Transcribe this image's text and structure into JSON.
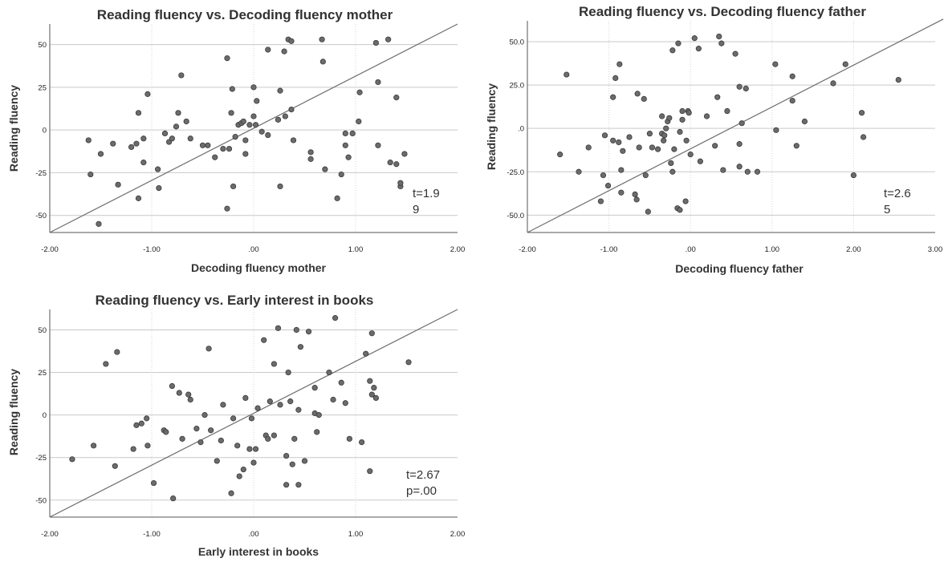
{
  "chart_data": [
    {
      "type": "scatter",
      "title": "Reading fluency vs. Decoding fluency mother",
      "xlabel": "Decoding fluency mother",
      "ylabel": "Reading fluency",
      "xlim": [
        -2,
        2
      ],
      "ylim": [
        -60,
        62
      ],
      "xticks": [
        -2,
        -1,
        0,
        1,
        2
      ],
      "xtick_labels": [
        "-2.00",
        "-1.00",
        ".00",
        "1.00",
        "2.00"
      ],
      "yticks": [
        50,
        25,
        0,
        -25,
        -50
      ],
      "ytick_labels": [
        "50",
        "25",
        "0",
        "-25",
        "-50"
      ],
      "grid": true,
      "annotation": [
        "t=1.9",
        "9"
      ],
      "fit_line": [
        [
          -2,
          -60
        ],
        [
          2,
          62
        ]
      ],
      "points": [
        [
          -1.62,
          -6
        ],
        [
          -1.6,
          -26
        ],
        [
          -1.52,
          -55
        ],
        [
          -1.5,
          -14
        ],
        [
          -1.38,
          -8
        ],
        [
          -1.33,
          -32
        ],
        [
          -1.2,
          -10
        ],
        [
          -1.15,
          -8
        ],
        [
          -1.13,
          10
        ],
        [
          -1.13,
          -40
        ],
        [
          -1.08,
          -19
        ],
        [
          -1.08,
          -5
        ],
        [
          -1.04,
          21
        ],
        [
          -0.94,
          -23
        ],
        [
          -0.93,
          -34
        ],
        [
          -0.87,
          -2
        ],
        [
          -0.83,
          -7
        ],
        [
          -0.8,
          -5
        ],
        [
          -0.76,
          2
        ],
        [
          -0.74,
          10
        ],
        [
          -0.71,
          32
        ],
        [
          -0.66,
          5
        ],
        [
          -0.62,
          -5
        ],
        [
          -0.5,
          -9
        ],
        [
          -0.45,
          -9
        ],
        [
          -0.38,
          -16
        ],
        [
          -0.3,
          -11
        ],
        [
          -0.26,
          42
        ],
        [
          -0.26,
          -46
        ],
        [
          -0.24,
          -11
        ],
        [
          -0.22,
          10
        ],
        [
          -0.21,
          24
        ],
        [
          -0.2,
          -33
        ],
        [
          -0.18,
          -4
        ],
        [
          -0.15,
          3
        ],
        [
          -0.12,
          4
        ],
        [
          -0.1,
          5
        ],
        [
          -0.08,
          -14
        ],
        [
          -0.08,
          -6
        ],
        [
          -0.04,
          3
        ],
        [
          0.0,
          25
        ],
        [
          0.0,
          8
        ],
        [
          0.03,
          17
        ],
        [
          0.02,
          3
        ],
        [
          0.08,
          -1
        ],
        [
          0.14,
          47
        ],
        [
          0.14,
          -3
        ],
        [
          0.24,
          6
        ],
        [
          0.26,
          23
        ],
        [
          0.26,
          -33
        ],
        [
          0.3,
          46
        ],
        [
          0.31,
          8
        ],
        [
          0.34,
          53
        ],
        [
          0.37,
          12
        ],
        [
          0.37,
          52
        ],
        [
          0.39,
          -6
        ],
        [
          0.56,
          -13
        ],
        [
          0.56,
          -17
        ],
        [
          0.67,
          53
        ],
        [
          0.68,
          40
        ],
        [
          0.7,
          -23
        ],
        [
          0.82,
          -40
        ],
        [
          0.86,
          -26
        ],
        [
          0.9,
          -2
        ],
        [
          0.9,
          -9
        ],
        [
          0.93,
          -16
        ],
        [
          0.97,
          -2
        ],
        [
          1.03,
          5
        ],
        [
          1.04,
          22
        ],
        [
          1.2,
          51
        ],
        [
          1.22,
          28
        ],
        [
          1.22,
          -9
        ],
        [
          1.32,
          53
        ],
        [
          1.34,
          -19
        ],
        [
          1.4,
          -20
        ],
        [
          1.4,
          19
        ],
        [
          1.44,
          -33
        ],
        [
          1.44,
          -31
        ],
        [
          1.48,
          -14
        ]
      ]
    },
    {
      "type": "scatter",
      "title": "Reading fluency vs. Decoding fluency father",
      "xlabel": "Decoding fluency father",
      "ylabel": "Reading fluency",
      "xlim": [
        -2,
        3
      ],
      "ylim": [
        -60,
        62
      ],
      "xticks": [
        -2,
        -1,
        0,
        1,
        2,
        3
      ],
      "xtick_labels": [
        "-2.00",
        "-1.00",
        ".00",
        "1.00",
        "2.00",
        "3.00"
      ],
      "yticks": [
        50,
        25,
        0,
        -25,
        -50
      ],
      "ytick_labels": [
        "50.0",
        "25.0",
        ".0",
        "-25.0",
        "-50.0"
      ],
      "grid": true,
      "annotation": [
        "t=2.6",
        "5"
      ],
      "fit_line": [
        [
          -2,
          -60
        ],
        [
          3.1,
          63
        ]
      ],
      "points": [
        [
          -1.6,
          -15
        ],
        [
          -1.52,
          31
        ],
        [
          -1.37,
          -25
        ],
        [
          -1.25,
          -11
        ],
        [
          -1.1,
          -42
        ],
        [
          -1.07,
          -27
        ],
        [
          -1.05,
          -4
        ],
        [
          -1.01,
          -33
        ],
        [
          -0.95,
          -7
        ],
        [
          -0.95,
          18
        ],
        [
          -0.92,
          29
        ],
        [
          -0.88,
          -8
        ],
        [
          -0.87,
          37
        ],
        [
          -0.85,
          -24
        ],
        [
          -0.85,
          -37
        ],
        [
          -0.83,
          -13
        ],
        [
          -0.75,
          -5
        ],
        [
          -0.68,
          -38
        ],
        [
          -0.66,
          -41
        ],
        [
          -0.65,
          20
        ],
        [
          -0.63,
          -11
        ],
        [
          -0.57,
          17
        ],
        [
          -0.55,
          -27
        ],
        [
          -0.52,
          -48
        ],
        [
          -0.5,
          -3
        ],
        [
          -0.47,
          -11
        ],
        [
          -0.4,
          -12
        ],
        [
          -0.35,
          7
        ],
        [
          -0.35,
          -3
        ],
        [
          -0.33,
          -7
        ],
        [
          -0.32,
          -4
        ],
        [
          -0.3,
          0
        ],
        [
          -0.28,
          4
        ],
        [
          -0.26,
          6
        ],
        [
          -0.24,
          -20
        ],
        [
          -0.22,
          -25
        ],
        [
          -0.22,
          45
        ],
        [
          -0.2,
          -12
        ],
        [
          -0.16,
          -46
        ],
        [
          -0.13,
          -47
        ],
        [
          -0.15,
          49
        ],
        [
          -0.13,
          -2
        ],
        [
          -0.1,
          5
        ],
        [
          -0.1,
          10
        ],
        [
          -0.06,
          -42
        ],
        [
          -0.05,
          -7
        ],
        [
          -0.03,
          10
        ],
        [
          -0.02,
          9
        ],
        [
          0.0,
          -15
        ],
        [
          0.05,
          52
        ],
        [
          0.1,
          46
        ],
        [
          0.12,
          -19
        ],
        [
          0.2,
          7
        ],
        [
          0.3,
          -10
        ],
        [
          0.33,
          18
        ],
        [
          0.35,
          53
        ],
        [
          0.38,
          49
        ],
        [
          0.4,
          -24
        ],
        [
          0.45,
          10
        ],
        [
          0.55,
          43
        ],
        [
          0.6,
          -9
        ],
        [
          0.6,
          -22
        ],
        [
          0.6,
          24
        ],
        [
          0.63,
          3
        ],
        [
          0.68,
          23
        ],
        [
          0.7,
          -25
        ],
        [
          0.82,
          -25
        ],
        [
          1.04,
          37
        ],
        [
          1.05,
          -1
        ],
        [
          1.25,
          30
        ],
        [
          1.25,
          16
        ],
        [
          1.3,
          -10
        ],
        [
          1.4,
          4
        ],
        [
          1.75,
          26
        ],
        [
          1.9,
          37
        ],
        [
          2.1,
          9
        ],
        [
          2.12,
          -5
        ],
        [
          2.0,
          -27
        ],
        [
          2.55,
          28
        ]
      ]
    },
    {
      "type": "scatter",
      "title": "Reading fluency vs. Early interest in books",
      "xlabel": "Early interest in books",
      "ylabel": "Reading fluency",
      "xlim": [
        -2,
        2
      ],
      "ylim": [
        -60,
        62
      ],
      "xticks": [
        -2,
        -1,
        0,
        1,
        2
      ],
      "xtick_labels": [
        "-2.00",
        "-1.00",
        ".00",
        "1.00",
        "2.00"
      ],
      "yticks": [
        50,
        25,
        0,
        -25,
        -50
      ],
      "ytick_labels": [
        "50",
        "25",
        "0",
        "-25",
        "-50"
      ],
      "grid": true,
      "annotation": [
        "t=2.67",
        "p=.00"
      ],
      "fit_line": [
        [
          -2,
          -60
        ],
        [
          2,
          62
        ]
      ],
      "points": [
        [
          -1.78,
          -26
        ],
        [
          -1.57,
          -18
        ],
        [
          -1.45,
          30
        ],
        [
          -1.36,
          -30
        ],
        [
          -1.34,
          37
        ],
        [
          -1.18,
          -20
        ],
        [
          -1.15,
          -6
        ],
        [
          -1.1,
          -5
        ],
        [
          -1.05,
          -2
        ],
        [
          -1.04,
          -18
        ],
        [
          -0.98,
          -40
        ],
        [
          -0.88,
          -9
        ],
        [
          -0.86,
          -10
        ],
        [
          -0.8,
          17
        ],
        [
          -0.79,
          -49
        ],
        [
          -0.73,
          13
        ],
        [
          -0.7,
          -14
        ],
        [
          -0.64,
          12
        ],
        [
          -0.62,
          9
        ],
        [
          -0.56,
          -8
        ],
        [
          -0.52,
          -16
        ],
        [
          -0.48,
          0
        ],
        [
          -0.44,
          39
        ],
        [
          -0.42,
          -9
        ],
        [
          -0.36,
          -27
        ],
        [
          -0.32,
          -15
        ],
        [
          -0.3,
          6
        ],
        [
          -0.22,
          -46
        ],
        [
          -0.2,
          -2
        ],
        [
          -0.16,
          -18
        ],
        [
          -0.14,
          -36
        ],
        [
          -0.1,
          -32
        ],
        [
          -0.08,
          10
        ],
        [
          -0.04,
          -20
        ],
        [
          -0.02,
          -2
        ],
        [
          0.0,
          -28
        ],
        [
          0.02,
          -20
        ],
        [
          0.04,
          4
        ],
        [
          0.1,
          44
        ],
        [
          0.12,
          -12
        ],
        [
          0.14,
          -14
        ],
        [
          0.16,
          8
        ],
        [
          0.2,
          -12
        ],
        [
          0.2,
          30
        ],
        [
          0.24,
          51
        ],
        [
          0.26,
          6
        ],
        [
          0.32,
          -24
        ],
        [
          0.32,
          -41
        ],
        [
          0.34,
          25
        ],
        [
          0.36,
          8
        ],
        [
          0.38,
          -29
        ],
        [
          0.4,
          -14
        ],
        [
          0.42,
          50
        ],
        [
          0.44,
          3
        ],
        [
          0.44,
          -41
        ],
        [
          0.46,
          40
        ],
        [
          0.5,
          -27
        ],
        [
          0.54,
          49
        ],
        [
          0.6,
          16
        ],
        [
          0.6,
          1
        ],
        [
          0.62,
          -10
        ],
        [
          0.64,
          0
        ],
        [
          0.74,
          25
        ],
        [
          0.78,
          9
        ],
        [
          0.8,
          57
        ],
        [
          0.86,
          19
        ],
        [
          0.9,
          7
        ],
        [
          0.94,
          -14
        ],
        [
          1.06,
          -16
        ],
        [
          1.1,
          36
        ],
        [
          1.14,
          -33
        ],
        [
          1.14,
          20
        ],
        [
          1.16,
          12
        ],
        [
          1.16,
          48
        ],
        [
          1.18,
          16
        ],
        [
          1.2,
          10
        ],
        [
          1.52,
          31
        ]
      ]
    }
  ]
}
